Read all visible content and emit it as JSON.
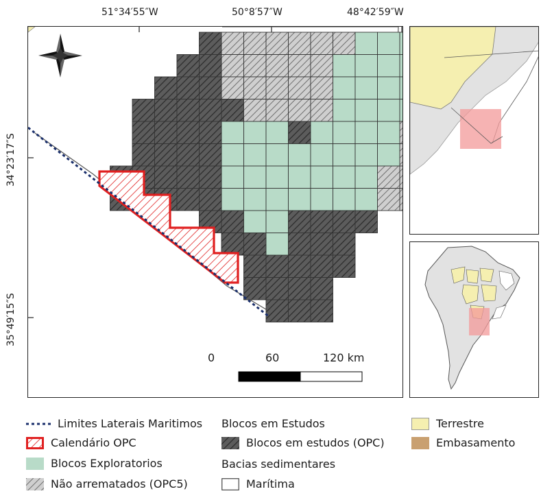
{
  "coords": {
    "top": [
      "51°34′55″W",
      "50°8′57″W",
      "48°42′59″W"
    ],
    "left": [
      "34°23′17″S",
      "35°49′15″S"
    ]
  },
  "scale": {
    "labels": [
      "0",
      "60",
      "120 km"
    ]
  },
  "colors": {
    "blocos_estudos": "#5a5a5a",
    "exploratorios": "#b8dbc8",
    "nao_arrematados": "#c4c4c4",
    "calendario": "#e02020",
    "terrestre": "#f5efb0",
    "embasamento": "#c9a070",
    "limites": "#1a2f6b",
    "inset_highlight": "#f39a9a"
  },
  "legend": {
    "col1": [
      {
        "label": "Limites Laterais Maritimos",
        "icon": "dashed-line-icon"
      },
      {
        "label": "Calendário OPC",
        "icon": "red-hatched-swatch"
      },
      {
        "label": "Blocos Exploratorios",
        "icon": "green-swatch"
      },
      {
        "label": "Não arrematados (OPC5)",
        "icon": "gray-hatched-swatch"
      }
    ],
    "col2": {
      "head1": "Blocos em Estudos",
      "item1": "Blocos em estudos (OPC)",
      "head2": "Bacias sedimentares",
      "item2": "Marítima"
    },
    "col3": [
      {
        "label": "Terrestre",
        "icon": "yellow-swatch"
      },
      {
        "label": "Embasamento",
        "icon": "brown-swatch"
      }
    ]
  }
}
